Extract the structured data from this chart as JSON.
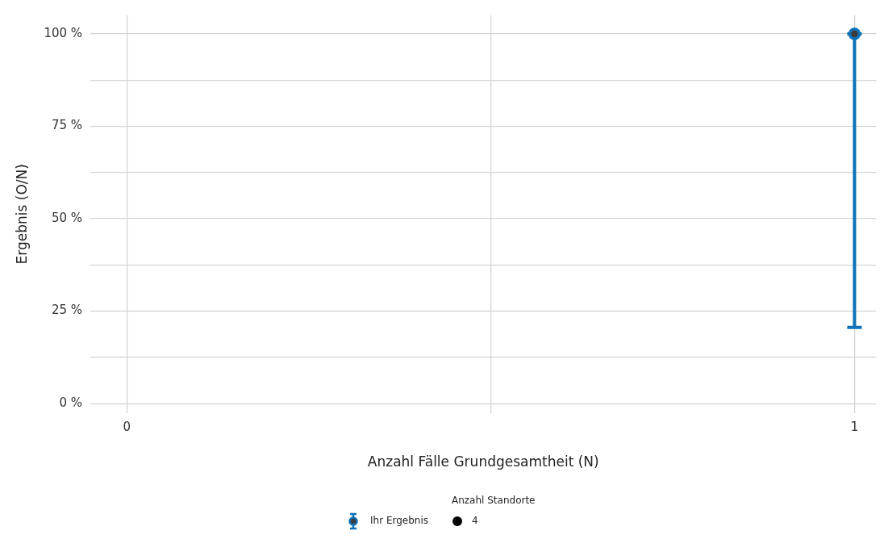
{
  "chart_data": {
    "type": "bubble",
    "xlabel": "Anzahl Fälle Grundgesamtheit (N)",
    "ylabel": "Ergebnis (O/N)",
    "legend_title": "Anzahl Standorte",
    "legend": "bottom",
    "grid": true,
    "x": [
      1
    ],
    "series": [
      {
        "name": "Ihr Ergebnis",
        "color": "#0f72b8",
        "values": [
          100
        ],
        "sizes": [
          4
        ],
        "errors": [
          [
            20.6,
            100
          ]
        ]
      }
    ],
    "size_legend": [
      {
        "value": 4,
        "label": "4"
      }
    ],
    "xlim": [
      -0.05,
      1.03
    ],
    "xticks": [
      0,
      {
        "value": 0.5,
        "label": null
      },
      1
    ],
    "ylim": [
      -2.5,
      105
    ],
    "yticks": [
      {
        "value": 0,
        "label": "0 %"
      },
      {
        "value": 12.5,
        "label": null
      },
      {
        "value": 25,
        "label": "25 %"
      },
      {
        "value": 37.5,
        "label": null
      },
      {
        "value": 50,
        "label": "50 %"
      },
      {
        "value": 62.5,
        "label": null
      },
      {
        "value": 75,
        "label": "75 %"
      },
      {
        "value": 87.5,
        "label": null
      },
      {
        "value": 100,
        "label": "100 %"
      }
    ]
  }
}
